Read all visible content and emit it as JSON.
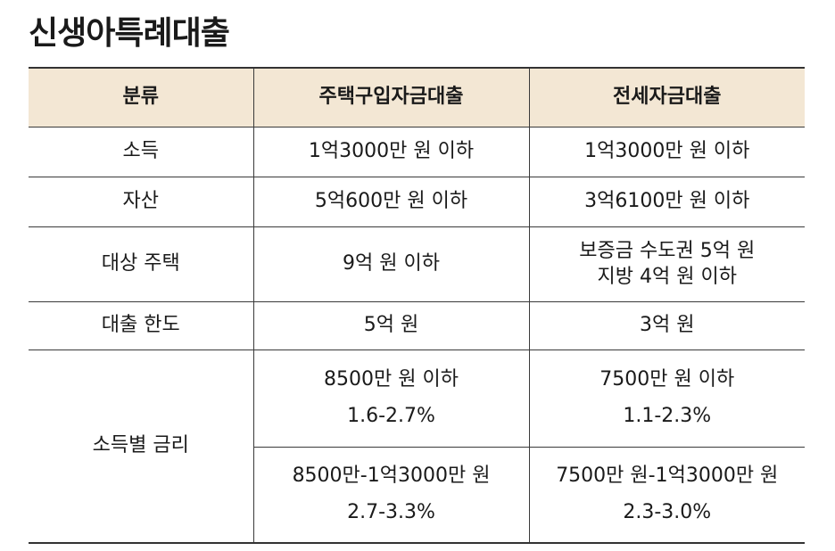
{
  "title": "신생아특례대출",
  "table": {
    "headers": [
      "분류",
      "주택구입자금대출",
      "전세자금대출"
    ],
    "income": {
      "label": "소득",
      "purchase": "1억3000만 원 이하",
      "jeonse": "1억3000만 원 이하"
    },
    "assets": {
      "label": "자산",
      "purchase": "5억600만 원 이하",
      "jeonse": "3억6100만 원 이하"
    },
    "target_house": {
      "label": "대상 주택",
      "purchase": "9억 원 이하",
      "jeonse_line1": "보증금 수도권 5억 원",
      "jeonse_line2": "지방 4억 원 이하"
    },
    "loan_limit": {
      "label": "대출 한도",
      "purchase": "5억 원",
      "jeonse": "3억 원"
    },
    "rate_by_income": {
      "label": "소득별 금리",
      "tier1": {
        "purchase_income": "8500만 원 이하",
        "purchase_rate": "1.6-2.7%",
        "jeonse_income": "7500만 원 이하",
        "jeonse_rate": "1.1-2.3%"
      },
      "tier2": {
        "purchase_income": "8500만-1억3000만 원",
        "purchase_rate": "2.7-3.3%",
        "jeonse_income": "7500만 원-1억3000만 원",
        "jeonse_rate": "2.3-3.0%"
      }
    }
  }
}
